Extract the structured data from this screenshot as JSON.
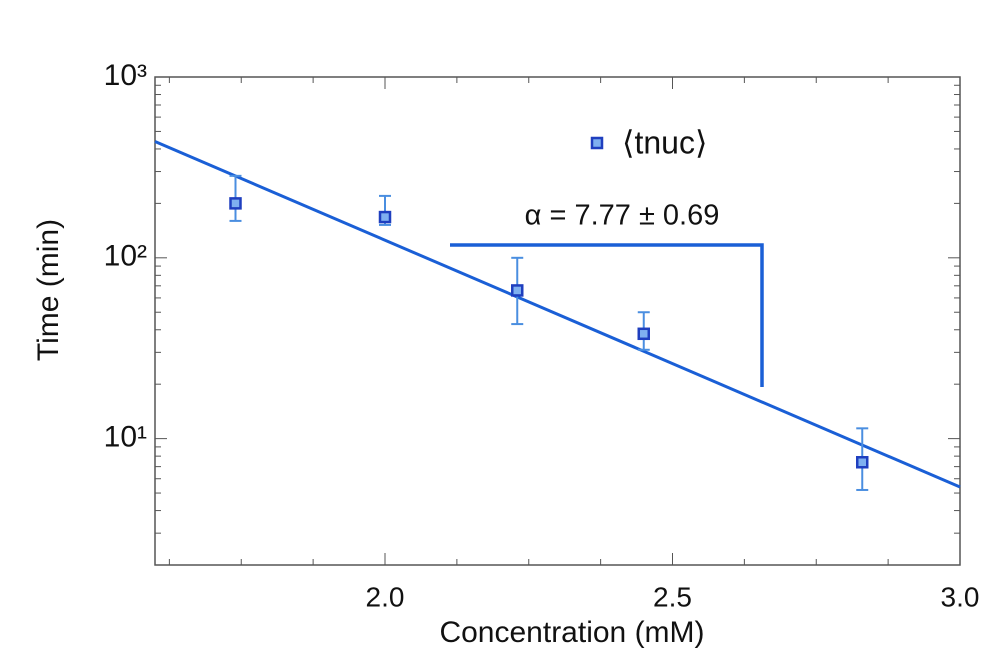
{
  "chart_data": {
    "type": "scatter",
    "x_label": "Concentration (mM)",
    "y_label": "Time (min)",
    "xlim": [
      1.6,
      3.0
    ],
    "xticks": [
      {
        "value": 2,
        "label": "2.0"
      },
      {
        "value": 2.5,
        "label": "2.5"
      },
      {
        "value": 3,
        "label": "3.0"
      }
    ],
    "ylim": [
      2,
      1000
    ],
    "yticks": [
      {
        "value": 10,
        "label": "10¹"
      },
      {
        "value": 100,
        "label": "10²"
      },
      {
        "value": 1000,
        "label": "10³"
      }
    ],
    "log_y": true,
    "series": [
      {
        "name": "⟨tnuc⟩",
        "color": "#1f3fbf",
        "x": [
          1.74,
          2.0,
          2.23,
          2.45,
          2.83
        ],
        "values": [
          200,
          168,
          66,
          38,
          7.4
        ],
        "lower": [
          160,
          152,
          43,
          31,
          5.2
        ],
        "upper": [
          284,
          220,
          100,
          50,
          11.4
        ]
      }
    ],
    "fit": {
      "color": "#1a5fd6",
      "x": [
        1.6,
        3.0
      ],
      "values": [
        440,
        5.4
      ]
    },
    "annotation": "α = 7.77 ± 0.69",
    "annotation_color": "#1a5fd6",
    "legend": "upper-center"
  }
}
